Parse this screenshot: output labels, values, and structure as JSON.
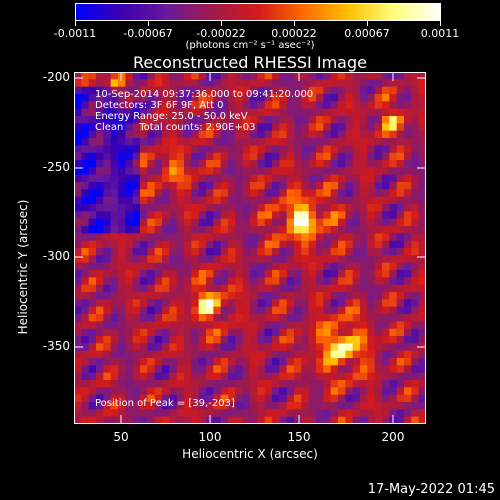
{
  "colorbar": {
    "tick_labels": [
      "-0.0011",
      "-0.00067",
      "-0.00022",
      "0.00022",
      "0.00067",
      "0.0011"
    ],
    "units_label": "(photons cm⁻² s⁻¹ asec⁻²)",
    "colormap": [
      "#0000ff",
      "#3b00b0",
      "#6a1a9a",
      "#a01a4a",
      "#d41a1a",
      "#ff6a00",
      "#ffc000",
      "#ffff80",
      "#ffffff"
    ]
  },
  "title": "Reconstructed RHESSI Image",
  "info": {
    "line1": "10-Sep-2014 09:37:36.000 to 09:41:20.000",
    "line2": "Detectors: 3F 6F 9F, Att 0",
    "line3": "Energy Range: 25.0 - 50.0 keV",
    "line4": "Clean     Total counts: 2.90E+03"
  },
  "peak_label": "Position of Peak = [39,-203]",
  "x_axis": {
    "label": "Heliocentric X (arcsec)",
    "ticks": [
      "50",
      "100",
      "150",
      "200"
    ]
  },
  "y_axis": {
    "label": "Heliocentric Y (arcsec)",
    "ticks": [
      "-200",
      "-250",
      "-300",
      "-350"
    ]
  },
  "timestamp": "17-May-2022 01:45"
}
